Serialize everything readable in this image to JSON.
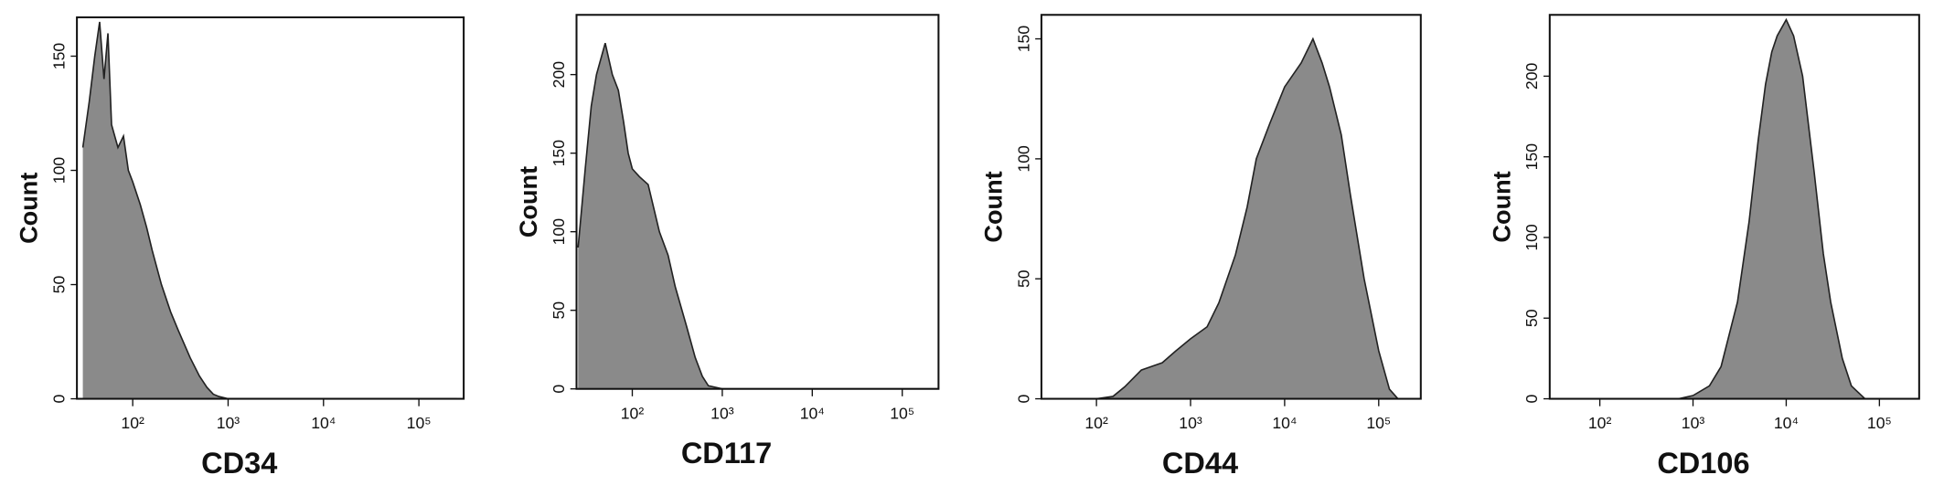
{
  "chart_data": [
    {
      "type": "area",
      "x_label": "CD34",
      "y_label": "Count",
      "log_x": true,
      "color": "#8a8a8a",
      "line_color": "#222222",
      "x": [
        30,
        35,
        40,
        45,
        50,
        55,
        60,
        70,
        80,
        90,
        100,
        120,
        140,
        160,
        200,
        250,
        300,
        400,
        500,
        600,
        700,
        800,
        1000,
        2000,
        10000,
        100000,
        250000
      ],
      "values": [
        110,
        130,
        150,
        165,
        140,
        160,
        120,
        110,
        115,
        100,
        95,
        85,
        75,
        65,
        50,
        38,
        30,
        18,
        10,
        5,
        2,
        1,
        0,
        0,
        0,
        0,
        0
      ],
      "xlim": [
        26,
        295000
      ],
      "ylim": [
        0,
        167
      ],
      "xticks": [
        {
          "value": 100,
          "label": "10²"
        },
        {
          "value": 1000,
          "label": "10³"
        },
        {
          "value": 10000,
          "label": "10⁴"
        },
        {
          "value": 100000,
          "label": "10⁵"
        }
      ],
      "yticks": [
        0,
        50,
        100,
        150
      ]
    },
    {
      "type": "area",
      "x_label": "CD117",
      "y_label": "Count",
      "log_x": true,
      "color": "#8a8a8a",
      "line_color": "#222222",
      "x": [
        25,
        30,
        35,
        40,
        50,
        60,
        70,
        80,
        90,
        100,
        120,
        150,
        200,
        250,
        300,
        400,
        500,
        600,
        700,
        1000,
        10000,
        100000,
        250000
      ],
      "values": [
        90,
        140,
        180,
        200,
        220,
        200,
        190,
        170,
        150,
        140,
        135,
        130,
        100,
        85,
        65,
        40,
        20,
        8,
        2,
        0,
        0,
        0,
        0
      ],
      "xlim": [
        24,
        253000
      ],
      "ylim": [
        0,
        238
      ],
      "xticks": [
        {
          "value": 100,
          "label": "10²"
        },
        {
          "value": 1000,
          "label": "10³"
        },
        {
          "value": 10000,
          "label": "10⁴"
        },
        {
          "value": 100000,
          "label": "10⁵"
        }
      ],
      "yticks": [
        0,
        50,
        100,
        150,
        200
      ]
    },
    {
      "type": "area",
      "x_label": "CD44",
      "y_label": "Count",
      "log_x": true,
      "color": "#8a8a8a",
      "line_color": "#222222",
      "x": [
        100,
        150,
        200,
        300,
        500,
        700,
        1000,
        1500,
        2000,
        3000,
        4000,
        5000,
        7000,
        10000,
        15000,
        20000,
        25000,
        30000,
        40000,
        50000,
        70000,
        100000,
        130000,
        160000
      ],
      "values": [
        0,
        1,
        5,
        12,
        15,
        20,
        25,
        30,
        40,
        60,
        80,
        100,
        115,
        130,
        140,
        150,
        140,
        130,
        110,
        85,
        50,
        20,
        4,
        0
      ],
      "xlim": [
        26,
        280000
      ],
      "ylim": [
        0,
        160
      ],
      "xticks": [
        {
          "value": 100,
          "label": "10²"
        },
        {
          "value": 1000,
          "label": "10³"
        },
        {
          "value": 10000,
          "label": "10⁴"
        },
        {
          "value": 100000,
          "label": "10⁵"
        }
      ],
      "yticks": [
        0,
        50,
        100,
        150
      ]
    },
    {
      "type": "area",
      "x_label": "CD106",
      "y_label": "Count",
      "log_x": true,
      "color": "#8a8a8a",
      "line_color": "#222222",
      "x": [
        700,
        1000,
        1500,
        2000,
        3000,
        4000,
        5000,
        6000,
        7000,
        8000,
        10000,
        12000,
        15000,
        20000,
        25000,
        30000,
        40000,
        50000,
        70000
      ],
      "values": [
        0,
        2,
        8,
        20,
        60,
        110,
        160,
        195,
        215,
        225,
        235,
        225,
        200,
        140,
        90,
        60,
        25,
        8,
        0
      ],
      "xlim": [
        29,
        267000
      ],
      "ylim": [
        0,
        238
      ],
      "xticks": [
        {
          "value": 100,
          "label": "10²"
        },
        {
          "value": 1000,
          "label": "10³"
        },
        {
          "value": 10000,
          "label": "10⁴"
        },
        {
          "value": 100000,
          "label": "10⁵"
        }
      ],
      "yticks": [
        0,
        50,
        100,
        150,
        200
      ]
    }
  ]
}
